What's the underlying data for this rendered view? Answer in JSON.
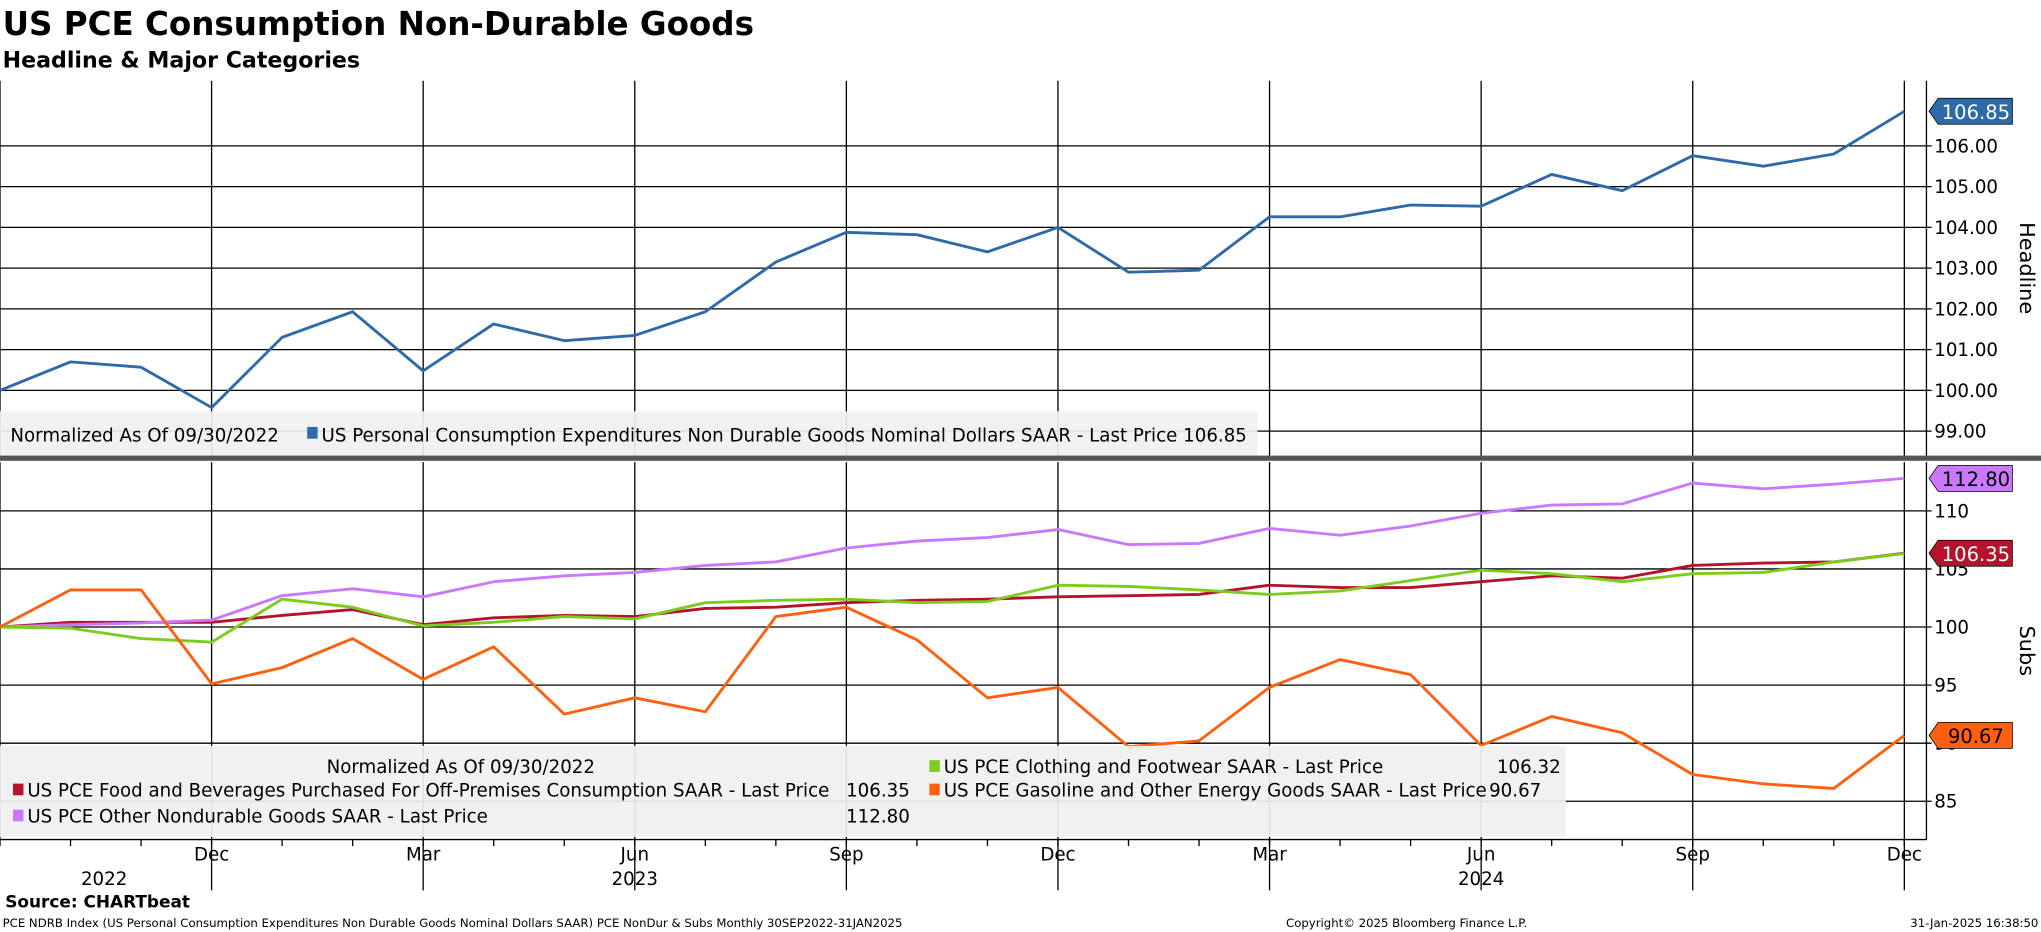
{
  "title": "US PCE Consumption Non-Durable Goods",
  "subtitle": "Headline & Major Categories",
  "source": "Source: CHARTbeat",
  "footer": {
    "left": "PCE NDRB Index (US Personal Consumption Expenditures Non Durable Goods Nominal Dollars SAAR) PCE NonDur & Subs  Monthly 30SEP2022-31JAN2025",
    "center": "Copyright© 2025 Bloomberg Finance L.P.",
    "right": "31-Jan-2025 16:38:50"
  },
  "chart_data": [
    {
      "type": "line",
      "panel": "Headline",
      "ylabel": "Headline",
      "ylim": [
        98.4,
        107.6
      ],
      "yticks": [
        "99.00",
        "100.00",
        "101.00",
        "102.00",
        "103.00",
        "104.00",
        "105.00",
        "106.00"
      ],
      "legend": {
        "normalized": "Normalized As Of 09/30/2022",
        "placement": "bottom-left"
      },
      "series": [
        {
          "name": "US Personal Consumption Expenditures Non Durable Goods Nominal Dollars SAAR - Last Price 106.85",
          "color": "#2e6aa8",
          "last": "106.85",
          "values": [
            100.0,
            100.7,
            100.57,
            99.58,
            101.3,
            101.93,
            100.48,
            101.63,
            101.22,
            101.35,
            101.93,
            103.15,
            103.88,
            103.82,
            103.4,
            104.0,
            102.9,
            102.95,
            104.26,
            104.26,
            104.55,
            104.52,
            105.3,
            104.9,
            105.76,
            105.5,
            105.8,
            106.85
          ]
        }
      ]
    },
    {
      "type": "line",
      "panel": "Subs",
      "ylabel": "Subs",
      "ylim": [
        81.7,
        114.2
      ],
      "yticks": [
        "85",
        "90",
        "95",
        "100",
        "105",
        "110"
      ],
      "legend": {
        "normalized": "Normalized As Of 09/30/2022",
        "placement": "bottom-left"
      },
      "series": [
        {
          "name": "US PCE Food and Beverages Purchased For Off-Premises Consumption SAAR - Last Price",
          "color": "#b5132b",
          "last": "106.35",
          "values": [
            100,
            100.4,
            100.4,
            100.4,
            101,
            101.5,
            100.2,
            100.8,
            101,
            100.9,
            101.6,
            101.7,
            102.1,
            102.3,
            102.4,
            102.6,
            102.7,
            102.8,
            103.6,
            103.4,
            103.4,
            103.9,
            104.4,
            104.2,
            105.3,
            105.5,
            105.6,
            106.35
          ]
        },
        {
          "name": "US PCE Other Nondurable Goods SAAR - Last Price",
          "color": "#cc77ff",
          "last": "112.80",
          "values": [
            100,
            100.2,
            100.35,
            100.6,
            102.7,
            103.3,
            102.6,
            103.9,
            104.4,
            104.7,
            105.3,
            105.6,
            106.8,
            107.4,
            107.7,
            108.4,
            107.1,
            107.2,
            108.5,
            107.9,
            108.7,
            109.8,
            110.5,
            110.6,
            112.4,
            111.9,
            112.3,
            112.8
          ]
        },
        {
          "name": "US PCE Clothing and Footwear SAAR - Last Price",
          "color": "#7ccc1c",
          "last": "106.32",
          "values": [
            100,
            99.9,
            99.0,
            98.7,
            102.4,
            101.7,
            100.1,
            100.4,
            100.9,
            100.7,
            102.1,
            102.3,
            102.4,
            102.1,
            102.2,
            103.6,
            103.5,
            103.2,
            102.8,
            103.1,
            104.0,
            104.9,
            104.6,
            103.9,
            104.6,
            104.7,
            105.6,
            106.32
          ]
        },
        {
          "name": "US PCE Gasoline and Other Energy Goods SAAR - Last Price",
          "color": "#ff6010",
          "last": "90.67",
          "values": [
            100,
            103.2,
            103.2,
            95.1,
            96.5,
            99.0,
            95.5,
            98.3,
            92.5,
            93.9,
            92.7,
            100.9,
            101.7,
            98.9,
            93.9,
            94.8,
            89.7,
            90.2,
            94.8,
            97.2,
            95.9,
            89.8,
            92.3,
            90.9,
            87.3,
            86.5,
            86.1,
            90.67
          ]
        }
      ],
      "tags": [
        {
          "value": "112.80",
          "color": "#cc77ff",
          "text_color": "#000000"
        },
        {
          "value": "106.35",
          "color": "#b5132b",
          "text_color": "#ffffff"
        },
        {
          "value": "90.67",
          "color": "#ff6010",
          "text_color": "#000000"
        }
      ]
    }
  ],
  "x_axis": {
    "months": [
      "Sep 2022",
      "Oct 2022",
      "Nov 2022",
      "Dec 2022",
      "Jan 2023",
      "Feb 2023",
      "Mar 2023",
      "Apr 2023",
      "May 2023",
      "Jun 2023",
      "Jul 2023",
      "Aug 2023",
      "Sep 2023",
      "Oct 2023",
      "Nov 2023",
      "Dec 2023",
      "Jan 2024",
      "Feb 2024",
      "Mar 2024",
      "Apr 2024",
      "May 2024",
      "Jun 2024",
      "Jul 2024",
      "Aug 2024",
      "Sep 2024",
      "Oct 2024",
      "Nov 2024",
      "Dec 2024"
    ],
    "tick_labels": [
      {
        "label": "Dec",
        "index": 3
      },
      {
        "label": "Mar",
        "index": 6
      },
      {
        "label": "Jun",
        "index": 9
      },
      {
        "label": "Sep",
        "index": 12
      },
      {
        "label": "Dec",
        "index": 15
      },
      {
        "label": "Mar",
        "index": 18
      },
      {
        "label": "Jun",
        "index": 21
      },
      {
        "label": "Sep",
        "index": 24
      },
      {
        "label": "Dec",
        "index": 27
      }
    ],
    "year_labels": [
      {
        "label": "2022",
        "index": 1
      },
      {
        "label": "2023",
        "index": 9
      },
      {
        "label": "2024",
        "index": 21
      }
    ]
  }
}
